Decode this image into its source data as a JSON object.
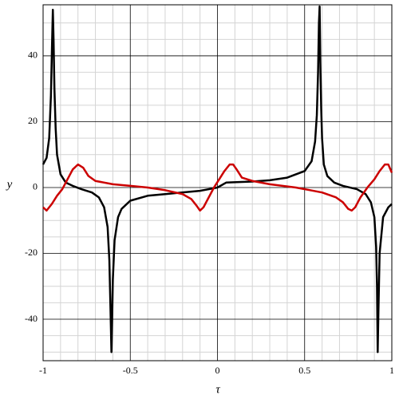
{
  "chart_data": {
    "type": "line",
    "xlabel": "τ",
    "ylabel": "y",
    "xlim": [
      -1,
      1
    ],
    "ylim": [
      -52.6,
      55.5
    ],
    "xticks": [
      -1,
      -0.5,
      0,
      0.5,
      1
    ],
    "yticks": [
      -40,
      -20,
      0,
      20,
      40
    ],
    "xminorticks": [
      -0.9,
      -0.8,
      -0.7,
      -0.6,
      -0.4,
      -0.3,
      -0.2,
      -0.1,
      0.1,
      0.2,
      0.3,
      0.4,
      0.6,
      0.7,
      0.8,
      0.9
    ],
    "yminorticks": [
      -50,
      -45,
      -35,
      -30,
      -25,
      -15,
      -10,
      -5,
      5,
      10,
      15,
      25,
      30,
      35,
      45,
      50
    ],
    "grid": true,
    "series": [
      {
        "color": "#000000",
        "x": [
          -1,
          -0.98,
          -0.965,
          -0.955,
          -0.948,
          -0.944,
          -0.94,
          -0.935,
          -0.928,
          -0.92,
          -0.9,
          -0.87,
          -0.83,
          -0.78,
          -0.72,
          -0.68,
          -0.65,
          -0.63,
          -0.62,
          -0.613,
          -0.608,
          -0.604,
          -0.6,
          -0.59,
          -0.57,
          -0.55,
          -0.5,
          -0.4,
          -0.3,
          -0.2,
          -0.1,
          0,
          0.05,
          0.2,
          0.3,
          0.4,
          0.5,
          0.54,
          0.56,
          0.57,
          0.577,
          0.582,
          0.586,
          0.59,
          0.595,
          0.6,
          0.61,
          0.63,
          0.67,
          0.72,
          0.8,
          0.85,
          0.88,
          0.9,
          0.91,
          0.915,
          0.919,
          0.923,
          0.93,
          0.95,
          0.98,
          1
        ],
        "values": [
          7,
          9,
          15,
          28,
          45,
          54,
          45,
          30,
          18,
          10,
          4,
          1.5,
          0.5,
          -0.5,
          -1.5,
          -3,
          -6,
          -12,
          -22,
          -38,
          -50,
          -40,
          -28,
          -16,
          -9,
          -6.5,
          -4,
          -2.5,
          -2,
          -1.5,
          -1,
          0,
          1.5,
          1.8,
          2.2,
          3,
          5,
          8,
          14,
          22,
          35,
          50,
          55,
          38,
          24,
          15,
          7,
          3.5,
          1.5,
          0.5,
          -0.5,
          -2,
          -4.5,
          -9,
          -18,
          -30,
          -50,
          -38,
          -20,
          -9,
          -6,
          -5
        ]
      },
      {
        "color": "#cc0000",
        "x": [
          -1,
          -0.98,
          -0.95,
          -0.92,
          -0.89,
          -0.86,
          -0.83,
          -0.8,
          -0.77,
          -0.74,
          -0.7,
          -0.6,
          -0.5,
          -0.4,
          -0.3,
          -0.2,
          -0.15,
          -0.12,
          -0.1,
          -0.08,
          -0.05,
          -0.02,
          0.01,
          0.04,
          0.07,
          0.09,
          0.11,
          0.14,
          0.2,
          0.3,
          0.45,
          0.6,
          0.68,
          0.72,
          0.75,
          0.77,
          0.79,
          0.82,
          0.86,
          0.9,
          0.93,
          0.96,
          0.98,
          1
        ],
        "values": [
          -6,
          -7,
          -5,
          -2.5,
          -0.5,
          2.5,
          5.5,
          7,
          6,
          3.5,
          2,
          1,
          0.5,
          0,
          -0.8,
          -2,
          -3.5,
          -5.5,
          -7,
          -6,
          -3,
          0,
          2.5,
          5,
          7,
          7,
          5.5,
          3,
          2,
          1,
          0,
          -1.5,
          -3,
          -4.5,
          -6.5,
          -7,
          -6,
          -3,
          0,
          2.5,
          5,
          7,
          7,
          4.5
        ]
      }
    ]
  }
}
